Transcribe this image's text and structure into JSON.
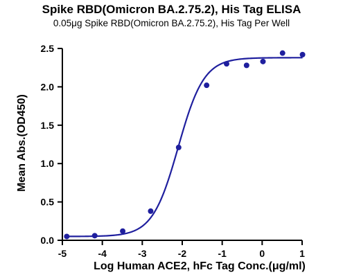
{
  "chart_data": {
    "type": "scatter",
    "title": "Spike RBD(Omicron BA.2.75.2), His Tag ELISA",
    "subtitle": "0.05μg Spike RBD(Omicron BA.2.75.2), His Tag Per Well",
    "xlabel": "Log Human ACE2, hFc Tag Conc.(μg/ml)",
    "ylabel": "Mean Abs.(OD450)",
    "xlim": [
      -5,
      1
    ],
    "ylim": [
      0,
      2.5
    ],
    "xticks": [
      -5,
      -4,
      -3,
      -2,
      -1,
      0,
      1
    ],
    "yticks": [
      0.0,
      0.5,
      1.0,
      1.5,
      2.0,
      2.5
    ],
    "ytick_labels": [
      "0.0",
      "0.5",
      "1.0",
      "1.5",
      "2.0",
      "2.5"
    ],
    "series": [
      {
        "x": [
          -4.89,
          -4.19,
          -3.49,
          -2.79,
          -2.09,
          -1.39,
          -0.89,
          -0.39,
          0.02,
          0.51,
          1.01
        ],
        "y": [
          0.05,
          0.06,
          0.12,
          0.38,
          1.21,
          2.02,
          2.3,
          2.28,
          2.33,
          2.44,
          2.42
        ],
        "fit": "sigmoidal (4PL)"
      }
    ],
    "fit_params": {
      "bottom": 0.05,
      "top": 2.38,
      "logEC50": -2.1,
      "hill": 1.35
    },
    "colors": {
      "series": "#1f1f9e",
      "axis": "#000000"
    },
    "grid": false,
    "legend": "none"
  }
}
